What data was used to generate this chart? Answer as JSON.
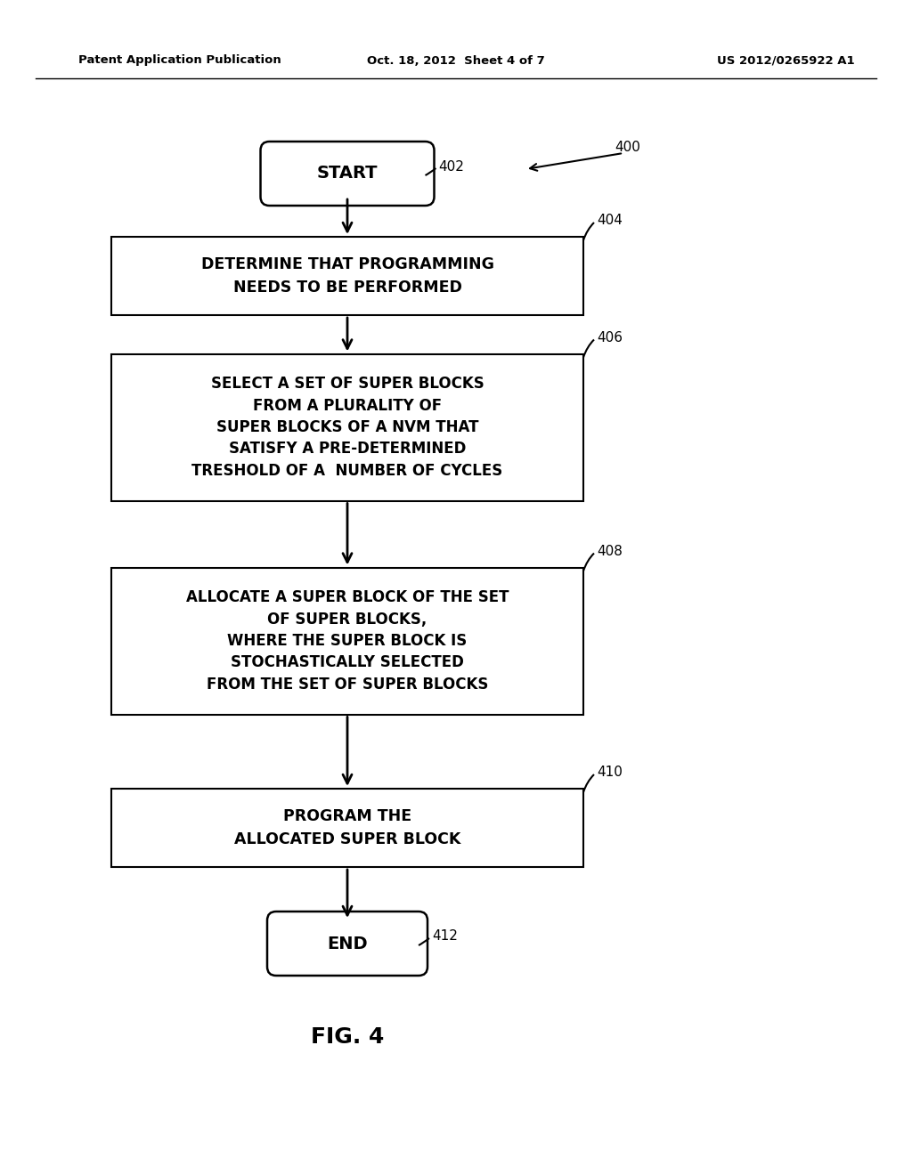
{
  "bg_color": "#ffffff",
  "header_left": "Patent Application Publication",
  "header_center": "Oct. 18, 2012  Sheet 4 of 7",
  "header_right": "US 2012/0265922 A1",
  "figure_label": "FIG. 4",
  "start_text": "START",
  "end_text": "END",
  "step1_text": "DETERMINE THAT PROGRAMMING\nNEEDS TO BE PERFORMED",
  "step2_text": "SELECT A SET OF SUPER BLOCKS\nFROM A PLURALITY OF\nSUPER BLOCKS OF A NVM THAT\nSATISFY A PRE-DETERMINED\nTRESHOLD OF A  NUMBER OF CYCLES",
  "step3_text": "ALLOCATE A SUPER BLOCK OF THE SET\nOF SUPER BLOCKS,\nWHERE THE SUPER BLOCK IS\nSTOCHASTICALLY SELECTED\nFROM THE SET OF SUPER BLOCKS",
  "step4_text": "PROGRAM THE\nALLOCATED SUPER BLOCK",
  "label_400": "400",
  "label_402": "402",
  "label_404": "404",
  "label_406": "406",
  "label_408": "408",
  "label_410": "410",
  "label_412": "412"
}
